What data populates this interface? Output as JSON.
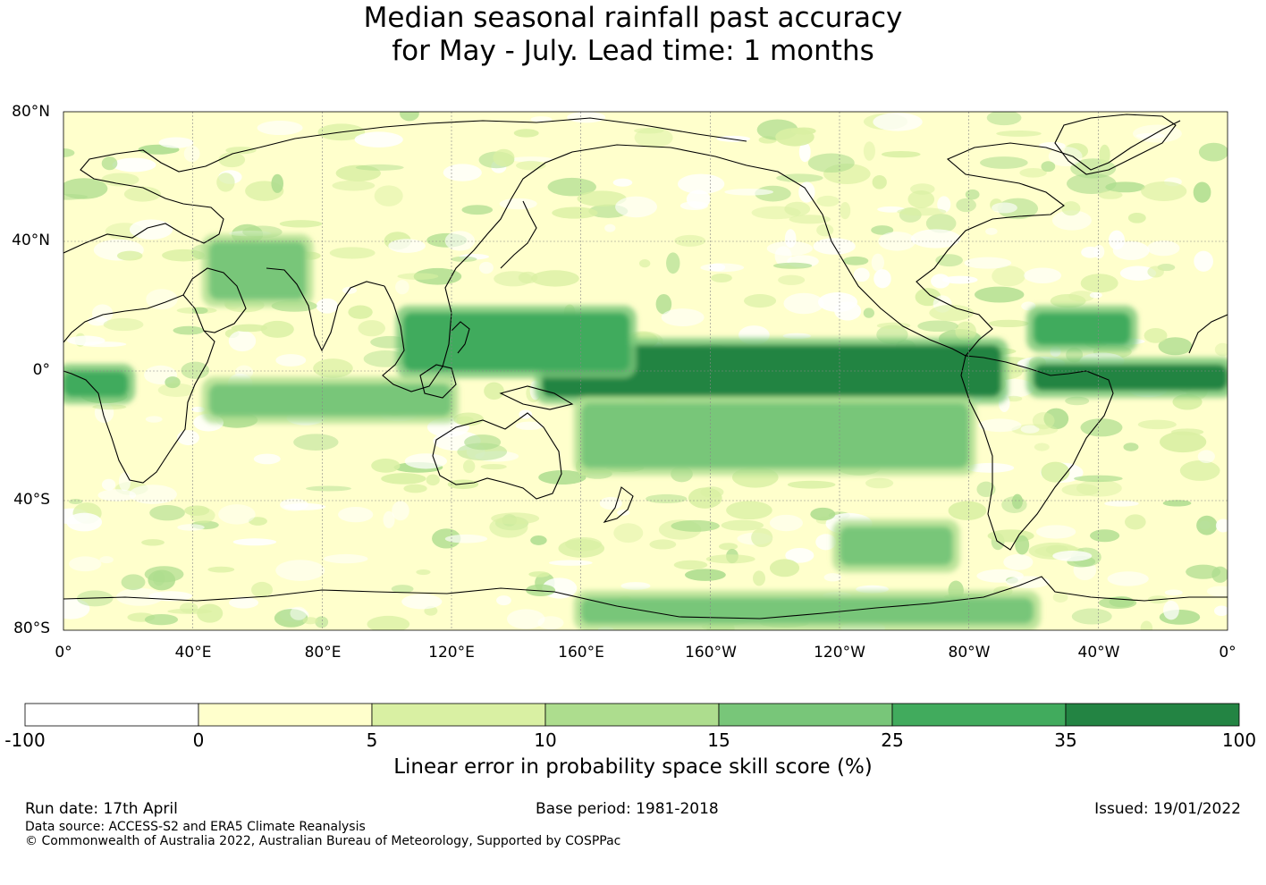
{
  "title": {
    "line1": "Median seasonal rainfall past accuracy",
    "line2": "for May - July. Lead time: 1 months"
  },
  "map": {
    "lat_labels": [
      "80°N",
      "40°N",
      "0°",
      "40°S",
      "80°S"
    ],
    "lon_labels": [
      "0°",
      "40°E",
      "80°E",
      "120°E",
      "160°E",
      "160°W",
      "120°W",
      "80°W",
      "40°W",
      "0°"
    ],
    "lat_range": [
      -80,
      80
    ],
    "lon_range": [
      0,
      360
    ],
    "high_skill_bands": [
      {
        "name": "equatorial-pacific",
        "lon": [
          148,
          290
        ],
        "lat": [
          -8,
          8
        ],
        "level": 35
      },
      {
        "name": "tropical-atlantic",
        "lon": [
          300,
          360
        ],
        "lat": [
          -6,
          2
        ],
        "level": 35
      },
      {
        "name": "equatorial-africa",
        "lon": [
          0,
          20
        ],
        "lat": [
          -8,
          0
        ],
        "level": 25
      },
      {
        "name": "west-pacific",
        "lon": [
          105,
          175
        ],
        "lat": [
          0,
          18
        ],
        "level": 25
      },
      {
        "name": "central-america",
        "lon": [
          300,
          330
        ],
        "lat": [
          8,
          18
        ],
        "level": 25
      },
      {
        "name": "indian-ocean",
        "lon": [
          45,
          120
        ],
        "lat": [
          -14,
          -4
        ],
        "level": 15
      },
      {
        "name": "arabia",
        "lon": [
          45,
          75
        ],
        "lat": [
          22,
          40
        ],
        "level": 15
      },
      {
        "name": "south-pacific",
        "lon": [
          160,
          280
        ],
        "lat": [
          -30,
          -10
        ],
        "level": 15
      },
      {
        "name": "southern-ocean",
        "lon": [
          240,
          275
        ],
        "lat": [
          -60,
          -48
        ],
        "level": 15
      },
      {
        "name": "antarctic-margin",
        "lon": [
          160,
          300
        ],
        "lat": [
          -78,
          -70
        ],
        "level": 15
      }
    ]
  },
  "colorbar": {
    "levels": [
      "-100",
      "0",
      "5",
      "10",
      "15",
      "25",
      "35",
      "100"
    ],
    "colors": [
      "#ffffff",
      "#ffffcc",
      "#d9f0a3",
      "#addd8e",
      "#78c679",
      "#41ab5d",
      "#238443"
    ],
    "label": "Linear error in probability space skill score (%)"
  },
  "footer": {
    "run_date": "Run date: 17th April",
    "base_period": "Base period: 1981-2018",
    "issued": "Issued: 19/01/2022",
    "data_source": "Data source: ACCESS-S2 and ERA5 Climate Reanalysis",
    "copyright": "© Commonwealth of Australia 2022, Australian Bureau of Meteorology, Supported by COSPPac"
  }
}
